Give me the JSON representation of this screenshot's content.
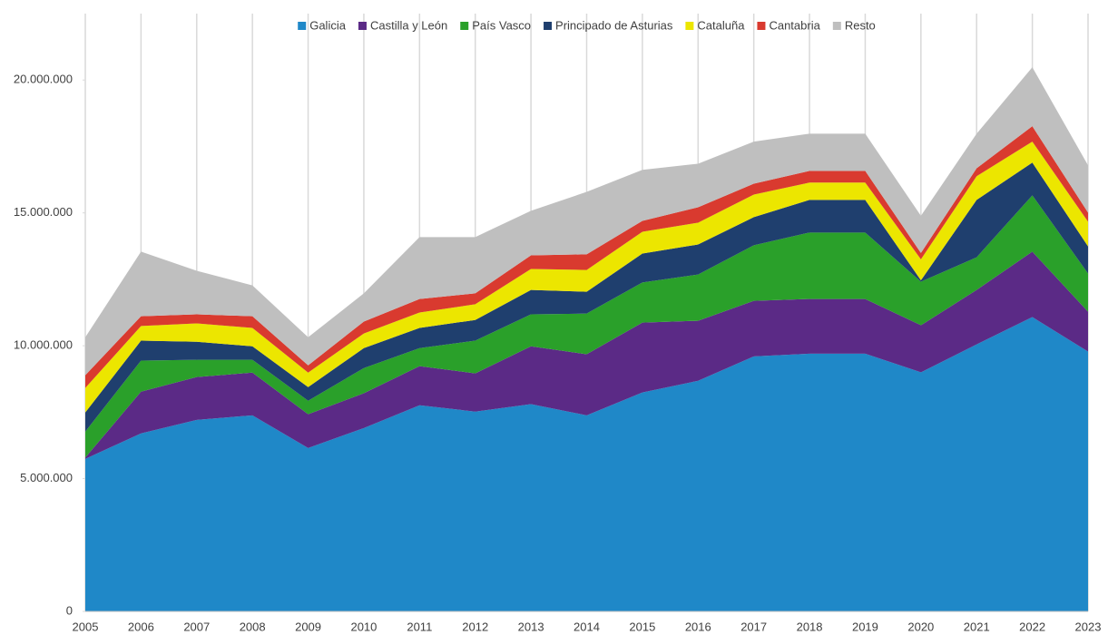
{
  "chart_data": {
    "type": "area",
    "stacked": true,
    "categories": [
      "2005",
      "2006",
      "2007",
      "2008",
      "2009",
      "2010",
      "2011",
      "2012",
      "2013",
      "2014",
      "2015",
      "2016",
      "2017",
      "2018",
      "2019",
      "2020",
      "2021",
      "2022",
      "2023"
    ],
    "series": [
      {
        "name": "Galicia",
        "color": "#1f88c8",
        "values": [
          5740000,
          6700000,
          7210000,
          7380000,
          6150000,
          6900000,
          7760000,
          7520000,
          7800000,
          7380000,
          8240000,
          8680000,
          9600000,
          9700000,
          9700000,
          9000000,
          10050000,
          11080000,
          9780000
        ]
      },
      {
        "name": "Castilla y León",
        "color": "#5b2a86",
        "values": [
          50000,
          1570000,
          1610000,
          1610000,
          1270000,
          1310000,
          1470000,
          1440000,
          2180000,
          2300000,
          2630000,
          2260000,
          2090000,
          2060000,
          2060000,
          1770000,
          2050000,
          2460000,
          1500000
        ]
      },
      {
        "name": "País Vasco",
        "color": "#2aa02a",
        "values": [
          980000,
          1170000,
          650000,
          480000,
          510000,
          950000,
          680000,
          1230000,
          1200000,
          1530000,
          1510000,
          1740000,
          2090000,
          2500000,
          2500000,
          1640000,
          1230000,
          2120000,
          1440000
        ]
      },
      {
        "name": "Principado de Asturias",
        "color": "#1f3f6e",
        "values": [
          720000,
          750000,
          680000,
          510000,
          510000,
          750000,
          760000,
          780000,
          920000,
          820000,
          1090000,
          1130000,
          1060000,
          1230000,
          1230000,
          50000,
          2160000,
          1230000,
          1020000
        ]
      },
      {
        "name": "Cataluña",
        "color": "#ece600",
        "values": [
          920000,
          550000,
          690000,
          690000,
          550000,
          550000,
          580000,
          590000,
          790000,
          820000,
          820000,
          820000,
          850000,
          650000,
          650000,
          790000,
          890000,
          790000,
          930000
        ]
      },
      {
        "name": "Cantabria",
        "color": "#d93a2f",
        "values": [
          480000,
          370000,
          340000,
          440000,
          270000,
          450000,
          510000,
          410000,
          510000,
          590000,
          410000,
          580000,
          410000,
          440000,
          440000,
          240000,
          300000,
          580000,
          340000
        ]
      },
      {
        "name": "Resto",
        "color": "#bfbfbf",
        "values": [
          1430000,
          2430000,
          1640000,
          1160000,
          1060000,
          1060000,
          2330000,
          2120000,
          1680000,
          2350000,
          1920000,
          1640000,
          1580000,
          1400000,
          1400000,
          1400000,
          1300000,
          2220000,
          1780000
        ]
      }
    ],
    "ylim": [
      0,
      22500000
    ],
    "yticks": [
      0,
      {
        "value": 5000000,
        "label": "5.000.000"
      },
      {
        "value": 10000000,
        "label": "10.000.000"
      },
      {
        "value": 15000000,
        "label": "15.000.000"
      },
      {
        "value": 20000000,
        "label": "20.000.000"
      }
    ],
    "grid": "x",
    "legend": "top"
  }
}
